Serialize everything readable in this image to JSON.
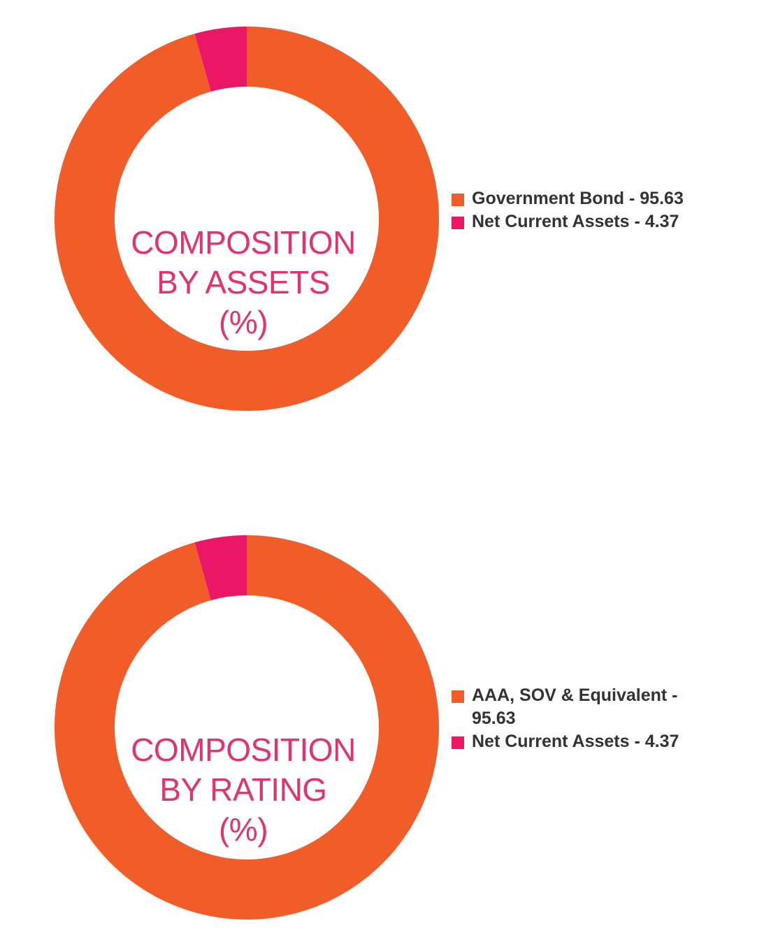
{
  "chart_data": [
    {
      "type": "pie",
      "title_lines": [
        "COMPOSITION",
        "BY ASSETS",
        "(%)"
      ],
      "slices": [
        {
          "label": "Government Bond - 95.63",
          "value": 95.63,
          "color": "#f15d29"
        },
        {
          "label": "Net Current Assets - 4.37",
          "value": 4.37,
          "color": "#ea1766"
        }
      ],
      "legend_position": "right"
    },
    {
      "type": "pie",
      "title_lines": [
        "COMPOSITION",
        "BY RATING",
        "(%)"
      ],
      "slices": [
        {
          "label": "AAA, SOV & Equivalent - 95.63",
          "value": 95.63,
          "color": "#f15d29"
        },
        {
          "label": "Net Current Assets - 4.37",
          "value": 4.37,
          "color": "#ea1766"
        }
      ],
      "legend_position": "right"
    }
  ],
  "colors": {
    "title": "#e0346d",
    "legend_text": "#333333"
  }
}
